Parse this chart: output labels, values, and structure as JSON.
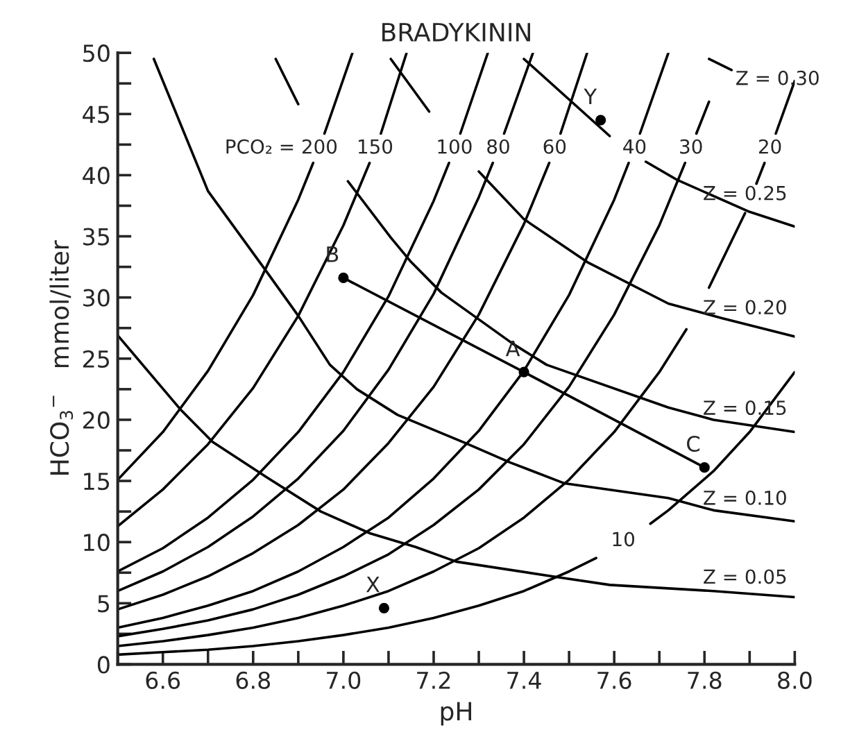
{
  "chart_data": {
    "type": "line",
    "title": "BRADYKININ",
    "xlabel": "pH",
    "ylabel": "HCO$_{3}$$^{−}$   mmol/liter",
    "xlim": [
      6.5,
      8.0
    ],
    "ylim": [
      0,
      50
    ],
    "xticks": [
      {
        "value": 6.5,
        "label": null
      },
      6.6,
      {
        "value": 6.7,
        "label": null
      },
      6.8,
      {
        "value": 6.9,
        "label": null
      },
      {
        "value": 7.0,
        "label": "7.0"
      },
      {
        "value": 7.1,
        "label": null
      },
      7.2,
      {
        "value": 7.3,
        "label": null
      },
      7.4,
      {
        "value": 7.5,
        "label": null
      },
      7.6,
      {
        "value": 7.7,
        "label": null
      },
      7.8,
      {
        "value": 7.9,
        "label": null
      },
      {
        "value": 8.0,
        "label": "8.0"
      }
    ],
    "yticks": [
      0,
      {
        "value": 2.5,
        "label": null
      },
      5,
      {
        "value": 7.5,
        "label": null
      },
      10,
      {
        "value": 12.5,
        "label": null
      },
      15,
      {
        "value": 17.5,
        "label": null
      },
      20,
      {
        "value": 22.5,
        "label": null
      },
      25,
      {
        "value": 27.5,
        "label": null
      },
      30,
      {
        "value": 32.5,
        "label": null
      },
      35,
      {
        "value": 37.5,
        "label": null
      },
      40,
      {
        "value": 42.5,
        "label": null
      },
      45,
      {
        "value": 47.5,
        "label": null
      },
      50
    ],
    "line_style": "solid",
    "series": [
      {
        "name": "PCO₂ = 200",
        "color": "#000000",
        "x": [
          6.5,
          6.6,
          6.7,
          6.8,
          6.9,
          6.933,
          6.945,
          6.958,
          7.02
        ],
        "values": [
          15.1,
          19.0,
          24.0,
          30.2,
          38.0,
          41.0,
          null,
          43.4,
          50
        ]
      },
      {
        "name": "150",
        "color": "#000000",
        "x": [
          6.5,
          6.6,
          6.7,
          6.8,
          6.9,
          7.0,
          7.058,
          7.07,
          7.083,
          7.14
        ],
        "values": [
          11.3,
          14.3,
          18.0,
          22.6,
          28.5,
          35.9,
          41.0,
          null,
          43.4,
          50
        ]
      },
      {
        "name": "100",
        "color": "#000000",
        "x": [
          6.5,
          6.6,
          6.7,
          6.8,
          6.9,
          7.0,
          7.1,
          7.2,
          7.234,
          7.246,
          7.259,
          7.32
        ],
        "values": [
          7.6,
          9.5,
          12.0,
          15.1,
          19.0,
          23.9,
          30.1,
          37.9,
          41.0,
          null,
          43.4,
          50
        ]
      },
      {
        "name": "80",
        "color": "#000000",
        "x": [
          6.5,
          6.6,
          6.7,
          6.8,
          6.9,
          7.0,
          7.1,
          7.2,
          7.3,
          7.331,
          7.343,
          7.356,
          7.42
        ],
        "values": [
          6.0,
          7.6,
          9.6,
          12.1,
          15.2,
          19.1,
          24.1,
          30.3,
          38.2,
          41.0,
          null,
          43.4,
          50
        ]
      },
      {
        "name": "60",
        "color": "#000000",
        "x": [
          6.5,
          6.6,
          6.7,
          6.8,
          6.9,
          7.0,
          7.1,
          7.2,
          7.3,
          7.4,
          7.456,
          7.468,
          7.481,
          7.54
        ],
        "values": [
          4.5,
          5.7,
          7.2,
          9.1,
          11.4,
          14.3,
          18.1,
          22.7,
          28.6,
          36.0,
          41.0,
          null,
          43.4,
          50
        ]
      },
      {
        "name": "40",
        "color": "#000000",
        "x": [
          6.5,
          6.6,
          6.7,
          6.8,
          6.9,
          7.0,
          7.1,
          7.2,
          7.3,
          7.4,
          7.5,
          7.6,
          7.632,
          7.645,
          7.657,
          7.72
        ],
        "values": [
          3.0,
          3.8,
          4.8,
          6.0,
          7.6,
          9.6,
          12.0,
          15.2,
          19.1,
          24.0,
          30.2,
          38.0,
          41.0,
          null,
          43.4,
          50
        ]
      },
      {
        "name": "30",
        "color": "#000000",
        "x": [
          6.5,
          6.6,
          6.7,
          6.8,
          6.9,
          7.0,
          7.1,
          7.2,
          7.3,
          7.4,
          7.5,
          7.6,
          7.7,
          7.757,
          7.77,
          7.782,
          7.81
        ],
        "values": [
          2.3,
          2.9,
          3.6,
          4.5,
          5.7,
          7.2,
          9.0,
          11.4,
          14.3,
          18.0,
          22.7,
          28.6,
          35.9,
          41.0,
          null,
          43.4,
          46.0
        ]
      },
      {
        "name": "20",
        "color": "#000000",
        "x": [
          6.5,
          6.6,
          6.7,
          6.8,
          6.9,
          7.0,
          7.1,
          7.2,
          7.3,
          7.4,
          7.5,
          7.6,
          7.7,
          7.76,
          7.785,
          7.81,
          7.89,
          7.9,
          7.915,
          7.933,
          7.945,
          7.958,
          8.0
        ],
        "values": [
          1.5,
          1.9,
          2.4,
          3.0,
          3.8,
          4.8,
          6.0,
          7.6,
          9.5,
          12.0,
          15.1,
          19.0,
          23.9,
          27.4,
          null,
          30.8,
          36.9,
          null,
          39.3,
          41.0,
          null,
          43.4,
          47.7
        ]
      },
      {
        "name": "10",
        "color": "#000000",
        "x": [
          6.5,
          6.6,
          6.7,
          6.8,
          6.9,
          7.0,
          7.1,
          7.2,
          7.3,
          7.4,
          7.5,
          7.56,
          7.62,
          7.68,
          7.72,
          7.82,
          7.9,
          8.0
        ],
        "values": [
          0.8,
          1.0,
          1.2,
          1.5,
          1.9,
          2.4,
          3.0,
          3.8,
          4.8,
          6.0,
          7.6,
          8.7,
          null,
          11.5,
          12.6,
          15.8,
          19.0,
          23.9
        ]
      },
      {
        "name": "Z = 0.05",
        "color": "#000000",
        "x": [
          6.5,
          6.64,
          6.71,
          6.83,
          6.95,
          7.06,
          7.16,
          7.25,
          7.48,
          7.59,
          7.82,
          8.0
        ],
        "values": [
          26.9,
          20.8,
          18.2,
          15.3,
          12.5,
          10.7,
          9.6,
          8.4,
          7.1,
          6.5,
          6.0,
          5.5
        ]
      },
      {
        "name": "Z = 0.10",
        "color": "#000000",
        "x": [
          6.58,
          6.7,
          6.83,
          6.9,
          6.97,
          7.03,
          7.12,
          7.27,
          7.37,
          7.49,
          7.72,
          7.82,
          8.0
        ],
        "values": [
          49.5,
          38.7,
          32.1,
          28.5,
          24.5,
          22.5,
          20.4,
          18.1,
          16.5,
          14.8,
          13.6,
          12.6,
          11.7
        ]
      },
      {
        "name": "Z = 0.15",
        "color": "#000000",
        "x": [
          6.85,
          6.9,
          6.955,
          7.01,
          7.105,
          7.15,
          7.217,
          7.376,
          7.45,
          7.72,
          7.82,
          8.0
        ],
        "values": [
          49.5,
          45.8,
          null,
          39.5,
          34.9,
          32.9,
          30.4,
          26.2,
          24.5,
          21.0,
          20.0,
          19.0
        ]
      },
      {
        "name": "Z = 0.20",
        "color": "#000000",
        "x": [
          7.105,
          7.19,
          7.245,
          7.3,
          7.4,
          7.54,
          7.72,
          7.84,
          8.0
        ],
        "values": [
          49.5,
          45.2,
          null,
          40.3,
          36.4,
          32.9,
          29.5,
          28.3,
          26.8
        ]
      },
      {
        "name": "Z = 0.25",
        "color": "#000000",
        "x": [
          7.4,
          7.59,
          7.63,
          7.67,
          7.74,
          7.9,
          8.0
        ],
        "values": [
          49.5,
          43.2,
          null,
          41.1,
          39.6,
          37.0,
          35.8
        ]
      },
      {
        "name": "Z = 0.30",
        "color": "#000000",
        "x": [
          7.81,
          7.86
        ],
        "values": [
          49.5,
          48.6
        ]
      },
      {
        "color": "#000000",
        "x": [
          7.0,
          7.4,
          7.8
        ],
        "values": [
          31.6,
          23.9,
          16.1
        ]
      },
      {
        "type": "scatter",
        "marker": "circle",
        "color": "#000000",
        "x": [
          7.09,
          7.57,
          7.0,
          7.4,
          7.8
        ],
        "values": [
          4.6,
          44.5,
          31.6,
          23.9,
          16.1
        ]
      }
    ],
    "annotations": [
      {
        "text": "X",
        "x": 7.09,
        "y": 4.6
      },
      {
        "text": "Y",
        "x": 7.57,
        "y": 44.5
      },
      {
        "text": "B",
        "x": 7.0,
        "y": 31.6
      },
      {
        "text": "A",
        "x": 7.4,
        "y": 23.9
      },
      {
        "text": "C",
        "x": 7.8,
        "y": 16.1
      }
    ]
  }
}
